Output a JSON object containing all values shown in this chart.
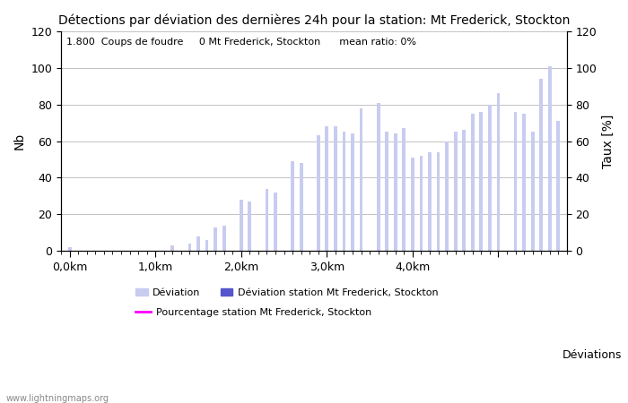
{
  "title": "Détections par déviation des dernières 24h pour la station: Mt Frederick, Stockton",
  "subtitle": "1.800  Coups de foudre     0 Mt Frederick, Stockton      mean ratio: 0%",
  "ylabel_left": "Nb",
  "ylabel_right": "Taux [%]",
  "xlabel_right": "Déviations",
  "ylim": [
    0,
    120
  ],
  "bar_values": [
    2,
    0,
    0,
    0,
    0,
    0,
    0,
    0,
    0,
    0,
    0,
    0,
    3,
    0,
    4,
    8,
    6,
    13,
    14,
    0,
    28,
    27,
    0,
    34,
    32,
    0,
    49,
    48,
    0,
    63,
    68,
    68,
    65,
    64,
    78,
    0,
    81,
    65,
    64,
    67,
    51,
    52,
    54,
    54,
    60,
    65,
    66,
    75,
    76,
    80,
    86,
    0,
    76,
    75,
    65,
    94,
    101,
    71
  ],
  "bar_color": "#c8ccf0",
  "station_bar_color": "#5555cc",
  "line_color": "#ff00ff",
  "xtick_positions": [
    0,
    10,
    20,
    30,
    40,
    50
  ],
  "xtick_labels": [
    "0,0km",
    "1,0km",
    "2,0km",
    "3,0km",
    "4,0km",
    ""
  ],
  "yticks": [
    0,
    20,
    40,
    60,
    80,
    100,
    120
  ],
  "watermark": "www.lightningmaps.org",
  "legend_deviation": "Déviation",
  "legend_station": "Déviation station Mt Frederick, Stockton",
  "legend_percent": "Pourcentage station Mt Frederick, Stockton",
  "grid_color": "#aaaaaa",
  "title_fontsize": 10,
  "axis_fontsize": 9,
  "subtitle_fontsize": 8,
  "watermark_fontsize": 7
}
